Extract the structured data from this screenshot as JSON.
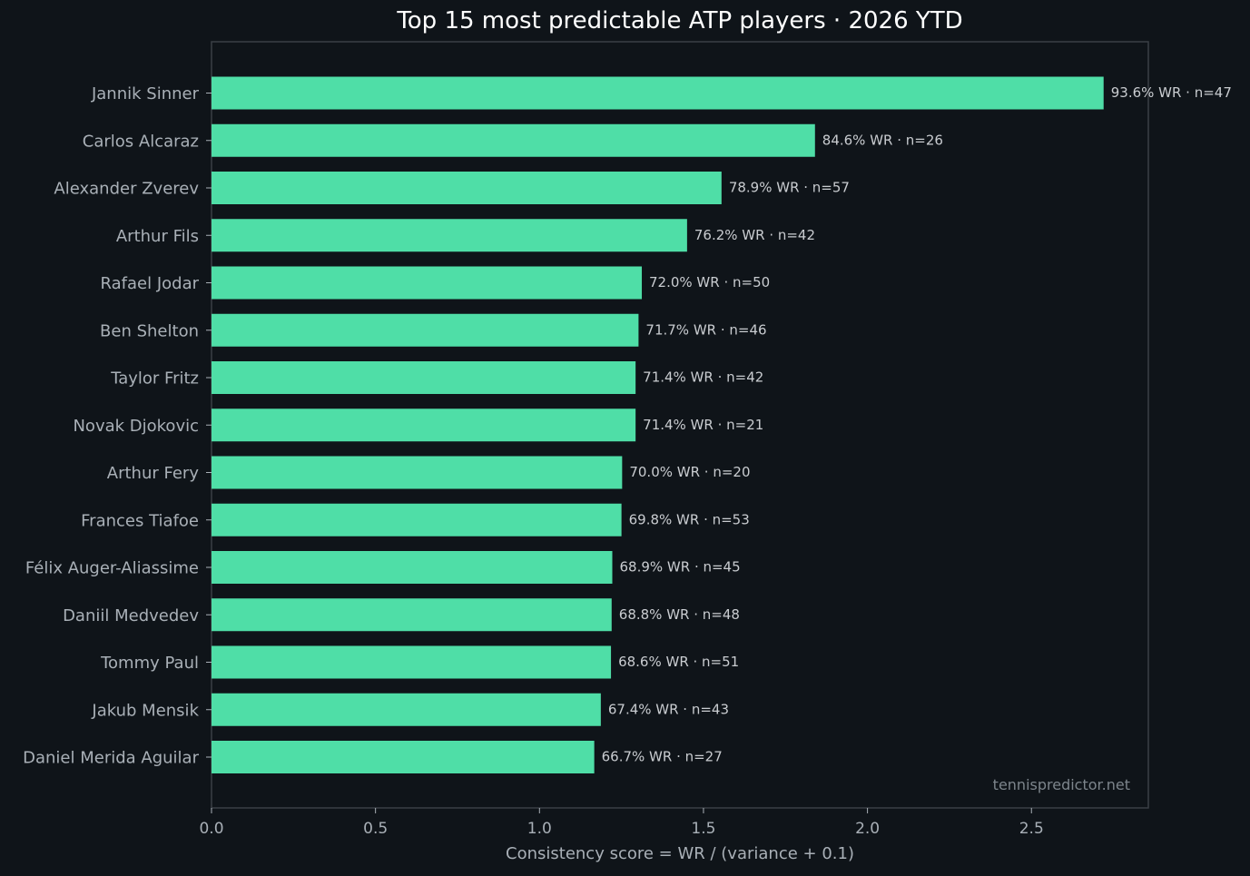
{
  "chart_data": {
    "type": "bar",
    "orientation": "horizontal",
    "title": "Top 15 most predictable ATP players · 2026 YTD",
    "xlabel": "Consistency score = WR / (variance + 0.1)",
    "ylabel": "",
    "xlim": [
      0,
      2.86
    ],
    "xticks": [
      "0.0",
      "0.5",
      "1.0",
      "1.5",
      "2.0",
      "2.5"
    ],
    "grid": false,
    "bar_color": "#4fdea7",
    "background": "#0f1419",
    "watermark": "tennispredictor.net",
    "categories": [
      "Jannik Sinner",
      "Carlos Alcaraz",
      "Alexander Zverev",
      "Arthur Fils",
      "Rafael Jodar",
      "Ben Shelton",
      "Taylor Fritz",
      "Novak Djokovic",
      "Arthur Fery",
      "Frances Tiafoe",
      "Félix Auger-Aliassime",
      "Daniil Medvedev",
      "Tommy Paul",
      "Jakub Mensik",
      "Daniel Merida Aguilar"
    ],
    "values": [
      2.72,
      1.84,
      1.555,
      1.45,
      1.312,
      1.302,
      1.293,
      1.293,
      1.252,
      1.25,
      1.222,
      1.22,
      1.218,
      1.187,
      1.167
    ],
    "data_labels": [
      "93.6% WR · n=47",
      "84.6% WR · n=26",
      "78.9% WR · n=57",
      "76.2% WR · n=42",
      "72.0% WR · n=50",
      "71.7% WR · n=46",
      "71.4% WR · n=42",
      "71.4% WR · n=21",
      "70.0% WR · n=20",
      "69.8% WR · n=53",
      "68.9% WR · n=45",
      "68.8% WR · n=48",
      "68.6% WR · n=51",
      "67.4% WR · n=43",
      "66.7% WR · n=27"
    ]
  }
}
